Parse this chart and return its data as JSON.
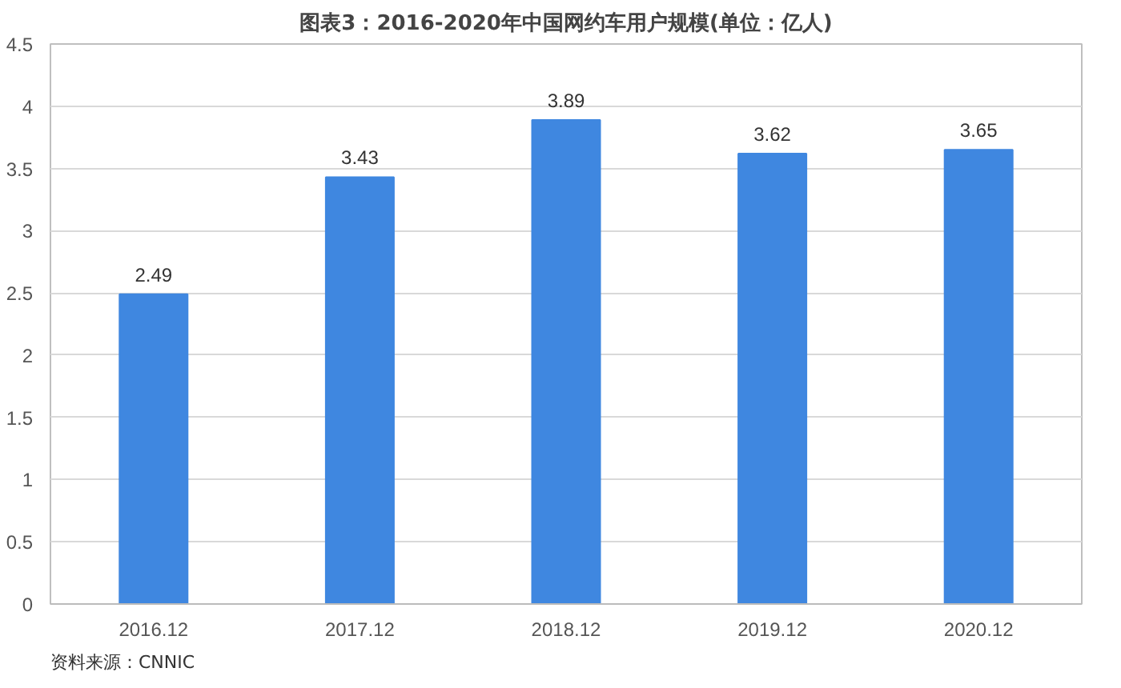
{
  "chart_data": {
    "type": "bar",
    "title": "图表3：2016-2020年中国网约车用户规模(单位：亿人)",
    "categories": [
      "2016.12",
      "2017.12",
      "2018.12",
      "2019.12",
      "2020.12"
    ],
    "values": [
      2.49,
      3.43,
      3.89,
      3.62,
      3.65
    ],
    "color": "#3f87e0",
    "ylim": [
      0,
      4.5
    ],
    "yticks": [
      0,
      0.5,
      1,
      1.5,
      2,
      2.5,
      3,
      3.5,
      4,
      4.5
    ],
    "grid": "y",
    "data_labels": true,
    "annotations": [
      "资料来源：CNNIC"
    ]
  }
}
